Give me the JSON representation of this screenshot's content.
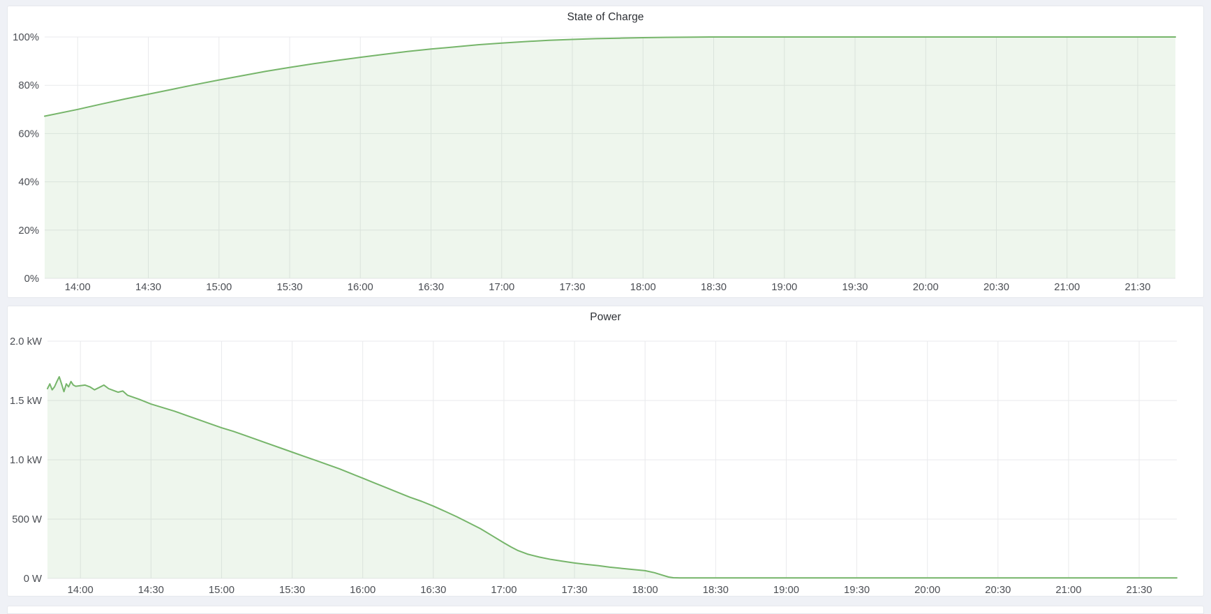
{
  "page": {
    "background_color": "#eff1f6",
    "panel_background": "#ffffff",
    "grid_color": "#e9eaec",
    "tick_label_color": "#4b4e54",
    "title_color": "#2d3035"
  },
  "chart_data": [
    {
      "type": "area",
      "title": "State of Charge",
      "xlabel": "",
      "ylabel": "",
      "unit": "%",
      "xlim": [
        "13:46",
        "21:46"
      ],
      "ylim": [
        0,
        100
      ],
      "grid": true,
      "legend": "none",
      "line_color": "#76b56a",
      "fill_color": "rgba(118,181,106,0.12)",
      "x_ticks": [
        "14:00",
        "14:30",
        "15:00",
        "15:30",
        "16:00",
        "16:30",
        "17:00",
        "17:30",
        "18:00",
        "18:30",
        "19:00",
        "19:30",
        "20:00",
        "20:30",
        "21:00",
        "21:30"
      ],
      "y_ticks": [
        {
          "label": "0%",
          "value": 0
        },
        {
          "label": "20%",
          "value": 20
        },
        {
          "label": "40%",
          "value": 40
        },
        {
          "label": "60%",
          "value": 60
        },
        {
          "label": "80%",
          "value": 80
        },
        {
          "label": "100%",
          "value": 100
        }
      ],
      "series": [
        {
          "name": "State of Charge",
          "points": [
            [
              "13:46",
              67.2
            ],
            [
              "14:00",
              70.0
            ],
            [
              "14:10",
              72.2
            ],
            [
              "14:20",
              74.3
            ],
            [
              "14:30",
              76.3
            ],
            [
              "14:40",
              78.3
            ],
            [
              "14:50",
              80.3
            ],
            [
              "15:00",
              82.2
            ],
            [
              "15:10",
              84.0
            ],
            [
              "15:20",
              85.8
            ],
            [
              "15:30",
              87.4
            ],
            [
              "15:40",
              88.9
            ],
            [
              "15:50",
              90.3
            ],
            [
              "16:00",
              91.6
            ],
            [
              "16:10",
              92.8
            ],
            [
              "16:20",
              94.0
            ],
            [
              "16:30",
              95.0
            ],
            [
              "16:40",
              95.9
            ],
            [
              "16:50",
              96.8
            ],
            [
              "17:00",
              97.5
            ],
            [
              "17:10",
              98.1
            ],
            [
              "17:20",
              98.6
            ],
            [
              "17:30",
              99.0
            ],
            [
              "17:40",
              99.3
            ],
            [
              "17:50",
              99.5
            ],
            [
              "18:00",
              99.7
            ],
            [
              "18:10",
              99.85
            ],
            [
              "18:20",
              99.95
            ],
            [
              "18:30",
              100
            ],
            [
              "19:00",
              100
            ],
            [
              "19:30",
              100
            ],
            [
              "20:00",
              100
            ],
            [
              "20:30",
              100
            ],
            [
              "21:00",
              100
            ],
            [
              "21:30",
              100
            ],
            [
              "21:46",
              100
            ]
          ]
        }
      ]
    },
    {
      "type": "area",
      "title": "Power",
      "xlabel": "",
      "ylabel": "",
      "unit": "W",
      "xlim": [
        "13:46",
        "21:46"
      ],
      "ylim": [
        0,
        2000
      ],
      "grid": true,
      "legend": "none",
      "line_color": "#76b56a",
      "fill_color": "rgba(118,181,106,0.12)",
      "x_ticks": [
        "14:00",
        "14:30",
        "15:00",
        "15:30",
        "16:00",
        "16:30",
        "17:00",
        "17:30",
        "18:00",
        "18:30",
        "19:00",
        "19:30",
        "20:00",
        "20:30",
        "21:00",
        "21:30"
      ],
      "y_ticks": [
        {
          "label": "0 W",
          "value": 0
        },
        {
          "label": "500 W",
          "value": 500
        },
        {
          "label": "1.0 kW",
          "value": 1000
        },
        {
          "label": "1.5 kW",
          "value": 1500
        },
        {
          "label": "2.0 kW",
          "value": 2000
        }
      ],
      "series": [
        {
          "name": "Power",
          "points": [
            [
              "13:46",
              1600
            ],
            [
              "13:47",
              1640
            ],
            [
              "13:48",
              1590
            ],
            [
              "13:49",
              1615
            ],
            [
              "13:50",
              1660
            ],
            [
              "13:51",
              1700
            ],
            [
              "13:52",
              1640
            ],
            [
              "13:53",
              1575
            ],
            [
              "13:54",
              1640
            ],
            [
              "13:55",
              1615
            ],
            [
              "13:56",
              1660
            ],
            [
              "13:57",
              1630
            ],
            [
              "13:58",
              1620
            ],
            [
              "14:00",
              1625
            ],
            [
              "14:02",
              1630
            ],
            [
              "14:04",
              1615
            ],
            [
              "14:06",
              1590
            ],
            [
              "14:08",
              1610
            ],
            [
              "14:10",
              1630
            ],
            [
              "14:12",
              1600
            ],
            [
              "14:14",
              1585
            ],
            [
              "14:16",
              1570
            ],
            [
              "14:18",
              1580
            ],
            [
              "14:20",
              1545
            ],
            [
              "14:25",
              1510
            ],
            [
              "14:30",
              1470
            ],
            [
              "14:35",
              1440
            ],
            [
              "14:40",
              1410
            ],
            [
              "14:45",
              1375
            ],
            [
              "14:50",
              1340
            ],
            [
              "14:55",
              1305
            ],
            [
              "15:00",
              1270
            ],
            [
              "15:05",
              1240
            ],
            [
              "15:10",
              1205
            ],
            [
              "15:15",
              1170
            ],
            [
              "15:20",
              1135
            ],
            [
              "15:25",
              1100
            ],
            [
              "15:30",
              1065
            ],
            [
              "15:35",
              1030
            ],
            [
              "15:40",
              995
            ],
            [
              "15:45",
              960
            ],
            [
              "15:50",
              925
            ],
            [
              "15:55",
              885
            ],
            [
              "16:00",
              845
            ],
            [
              "16:05",
              805
            ],
            [
              "16:10",
              765
            ],
            [
              "16:15",
              725
            ],
            [
              "16:20",
              685
            ],
            [
              "16:25",
              650
            ],
            [
              "16:30",
              610
            ],
            [
              "16:35",
              565
            ],
            [
              "16:40",
              520
            ],
            [
              "16:45",
              470
            ],
            [
              "16:50",
              420
            ],
            [
              "16:55",
              360
            ],
            [
              "17:00",
              300
            ],
            [
              "17:03",
              265
            ],
            [
              "17:06",
              235
            ],
            [
              "17:10",
              205
            ],
            [
              "17:15",
              180
            ],
            [
              "17:20",
              160
            ],
            [
              "17:25",
              145
            ],
            [
              "17:30",
              130
            ],
            [
              "17:35",
              118
            ],
            [
              "17:40",
              108
            ],
            [
              "17:45",
              95
            ],
            [
              "17:50",
              85
            ],
            [
              "17:55",
              75
            ],
            [
              "18:00",
              65
            ],
            [
              "18:04",
              48
            ],
            [
              "18:07",
              30
            ],
            [
              "18:10",
              12
            ],
            [
              "18:12",
              6
            ],
            [
              "18:15",
              4
            ],
            [
              "18:30",
              4
            ],
            [
              "19:00",
              4
            ],
            [
              "19:30",
              4
            ],
            [
              "20:00",
              4
            ],
            [
              "20:30",
              4
            ],
            [
              "21:00",
              4
            ],
            [
              "21:30",
              4
            ],
            [
              "21:46",
              4
            ]
          ]
        }
      ]
    }
  ]
}
